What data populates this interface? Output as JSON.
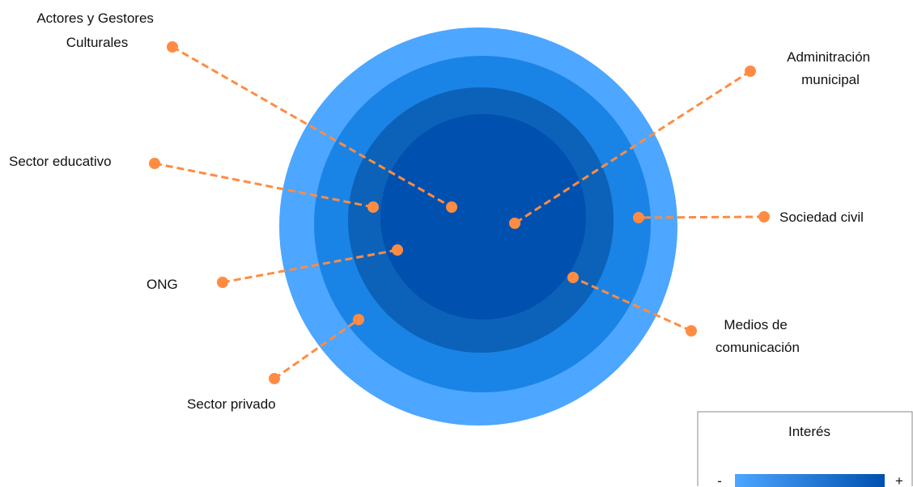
{
  "rings": {
    "colors": [
      "#4da6ff",
      "#1a84e6",
      "#0b62b8",
      "#0050b0"
    ]
  },
  "connector": {
    "color": "#ff8c42"
  },
  "stakeholders": [
    {
      "id": "actores",
      "label_lines": [
        "Actores y Gestores",
        "Culturales"
      ]
    },
    {
      "id": "sector-educativo",
      "label_lines": [
        "Sector educativo"
      ]
    },
    {
      "id": "ong",
      "label_lines": [
        "ONG"
      ]
    },
    {
      "id": "sector-privado",
      "label_lines": [
        "Sector privado"
      ]
    },
    {
      "id": "administracion",
      "label_lines": [
        "Adminitración",
        "municipal"
      ]
    },
    {
      "id": "sociedad-civil",
      "label_lines": [
        "Sociedad civil"
      ]
    },
    {
      "id": "medios",
      "label_lines": [
        "Medios de",
        "comunicación"
      ]
    }
  ],
  "legend": {
    "title": "Interés",
    "minus": "-",
    "plus": "+",
    "gradient_start": "#4da6ff",
    "gradient_end": "#0050b0"
  }
}
